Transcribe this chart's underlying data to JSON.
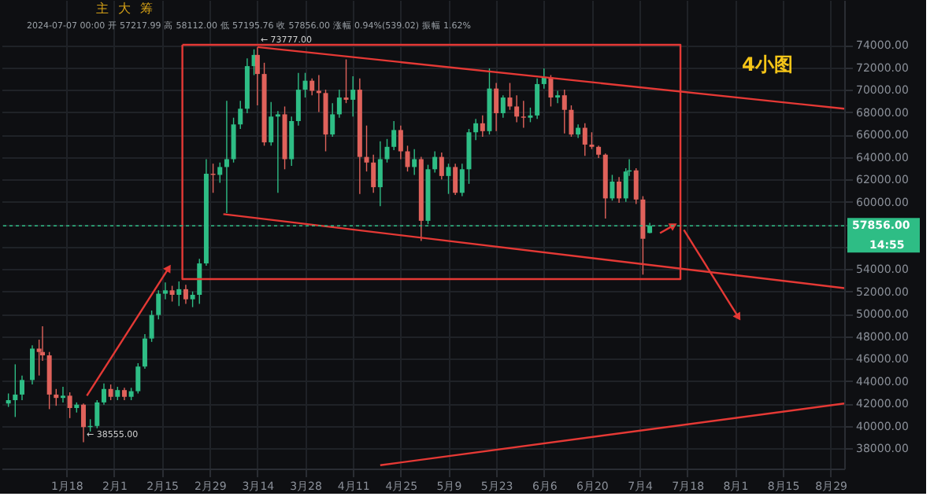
{
  "chart_data": {
    "type": "candlestick",
    "x": [
      "2024-01-01",
      "2024-01-03",
      "2024-01-05",
      "2024-01-08",
      "2024-01-10",
      "2024-01-11",
      "2024-01-13",
      "2024-01-15",
      "2024-01-17",
      "2024-01-19",
      "2024-01-21",
      "2024-01-23",
      "2024-01-25",
      "2024-01-27",
      "2024-01-29",
      "2024-01-31",
      "2024-02-02",
      "2024-02-04",
      "2024-02-06",
      "2024-02-08",
      "2024-02-10",
      "2024-02-12",
      "2024-02-14",
      "2024-02-16",
      "2024-02-18",
      "2024-02-20",
      "2024-02-22",
      "2024-02-24",
      "2024-02-26",
      "2024-02-28",
      "2024-03-01",
      "2024-03-03",
      "2024-03-05",
      "2024-03-07",
      "2024-03-09",
      "2024-03-11",
      "2024-03-13",
      "2024-03-14",
      "2024-03-16",
      "2024-03-18",
      "2024-03-20",
      "2024-03-22",
      "2024-03-24",
      "2024-03-26",
      "2024-03-28",
      "2024-03-30",
      "2024-04-01",
      "2024-04-03",
      "2024-04-05",
      "2024-04-07",
      "2024-04-09",
      "2024-04-11",
      "2024-04-13",
      "2024-04-15",
      "2024-04-17",
      "2024-04-19",
      "2024-04-21",
      "2024-04-23",
      "2024-04-25",
      "2024-04-27",
      "2024-04-29",
      "2024-05-01",
      "2024-05-03",
      "2024-05-05",
      "2024-05-07",
      "2024-05-09",
      "2024-05-11",
      "2024-05-13",
      "2024-05-15",
      "2024-05-17",
      "2024-05-19",
      "2024-05-21",
      "2024-05-23",
      "2024-05-25",
      "2024-05-27",
      "2024-05-29",
      "2024-05-31",
      "2024-06-02",
      "2024-06-04",
      "2024-06-06",
      "2024-06-08",
      "2024-06-10",
      "2024-06-12",
      "2024-06-14",
      "2024-06-16",
      "2024-06-18",
      "2024-06-20",
      "2024-06-22",
      "2024-06-24",
      "2024-06-26",
      "2024-06-28",
      "2024-06-30",
      "2024-07-01",
      "2024-07-03",
      "2024-07-05",
      "2024-07-07"
    ],
    "ohlc": [
      [
        42000,
        42900,
        41700,
        42300
      ],
      [
        42300,
        45500,
        40800,
        42800
      ],
      [
        42800,
        44500,
        42300,
        44100
      ],
      [
        44100,
        47200,
        43700,
        46900
      ],
      [
        46900,
        47700,
        44500,
        46600
      ],
      [
        46600,
        48900,
        45800,
        46300
      ],
      [
        46300,
        46600,
        41500,
        42800
      ],
      [
        42800,
        43300,
        41800,
        42500
      ],
      [
        42500,
        43500,
        42100,
        42700
      ],
      [
        42700,
        43000,
        40700,
        41600
      ],
      [
        41600,
        42100,
        41200,
        41900
      ],
      [
        41900,
        42000,
        38555,
        39900
      ],
      [
        39900,
        40600,
        39500,
        40000
      ],
      [
        40000,
        42300,
        39800,
        42100
      ],
      [
        42100,
        43800,
        41900,
        43300
      ],
      [
        43300,
        43700,
        42300,
        42600
      ],
      [
        42600,
        43500,
        42300,
        43200
      ],
      [
        43200,
        43400,
        42300,
        42600
      ],
      [
        42600,
        43400,
        42300,
        43100
      ],
      [
        43100,
        45600,
        42900,
        45300
      ],
      [
        45300,
        48200,
        45100,
        47800
      ],
      [
        47800,
        50300,
        47500,
        49900
      ],
      [
        49900,
        52100,
        49500,
        51800
      ],
      [
        51800,
        52800,
        51300,
        52100
      ],
      [
        52100,
        52500,
        51100,
        51700
      ],
      [
        51700,
        52900,
        50700,
        52200
      ],
      [
        52200,
        52600,
        50900,
        51300
      ],
      [
        51300,
        52000,
        50600,
        51700
      ],
      [
        51700,
        54900,
        50900,
        54500
      ],
      [
        54500,
        63800,
        54300,
        62500
      ],
      [
        62500,
        63400,
        60800,
        62400
      ],
      [
        62400,
        63500,
        61700,
        63100
      ],
      [
        63100,
        69000,
        59000,
        63800
      ],
      [
        63800,
        67500,
        63500,
        66900
      ],
      [
        66900,
        69000,
        66500,
        68300
      ],
      [
        68300,
        72800,
        67900,
        72100
      ],
      [
        72100,
        73600,
        71300,
        73100
      ],
      [
        73100,
        73777,
        68600,
        71400
      ],
      [
        71400,
        72400,
        65000,
        65300
      ],
      [
        65300,
        68900,
        65000,
        67600
      ],
      [
        67600,
        68100,
        60800,
        67800
      ],
      [
        67800,
        68500,
        62900,
        63800
      ],
      [
        63800,
        67600,
        63200,
        67200
      ],
      [
        67200,
        71500,
        66800,
        70000
      ],
      [
        70000,
        71500,
        69300,
        70800
      ],
      [
        70800,
        71000,
        69500,
        69900
      ],
      [
        69900,
        71300,
        68000,
        69700
      ],
      [
        69700,
        70000,
        64500,
        66000
      ],
      [
        66000,
        68800,
        65800,
        67800
      ],
      [
        67800,
        70000,
        67500,
        69300
      ],
      [
        69300,
        72700,
        68800,
        69100
      ],
      [
        69100,
        71200,
        67600,
        70000
      ],
      [
        70000,
        71000,
        60700,
        64000
      ],
      [
        64000,
        66800,
        62700,
        63500
      ],
      [
        63500,
        64200,
        60800,
        61300
      ],
      [
        61300,
        65400,
        59600,
        63800
      ],
      [
        63800,
        65600,
        63500,
        64900
      ],
      [
        64900,
        67200,
        64600,
        66400
      ],
      [
        66400,
        66800,
        63800,
        64500
      ],
      [
        64500,
        65000,
        62700,
        63100
      ],
      [
        63100,
        64700,
        62400,
        63800
      ],
      [
        63800,
        64000,
        56500,
        58300
      ],
      [
        58300,
        63300,
        58000,
        62900
      ],
      [
        62900,
        64500,
        62600,
        64000
      ],
      [
        64000,
        64400,
        62000,
        62300
      ],
      [
        62300,
        63400,
        60700,
        63100
      ],
      [
        63100,
        63400,
        60600,
        60800
      ],
      [
        60800,
        63400,
        60500,
        62900
      ],
      [
        62900,
        66500,
        61600,
        66200
      ],
      [
        66200,
        67400,
        65500,
        67000
      ],
      [
        67000,
        67700,
        65800,
        66300
      ],
      [
        66300,
        71900,
        66000,
        70100
      ],
      [
        70100,
        70600,
        66300,
        67900
      ],
      [
        67900,
        69500,
        67500,
        69300
      ],
      [
        69300,
        70600,
        68200,
        68500
      ],
      [
        68500,
        69500,
        67100,
        67600
      ],
      [
        67600,
        69000,
        66600,
        67500
      ],
      [
        67500,
        68400,
        67100,
        67700
      ],
      [
        67700,
        71000,
        67400,
        70500
      ],
      [
        70500,
        71900,
        70100,
        71100
      ],
      [
        71100,
        71300,
        68500,
        69300
      ],
      [
        69300,
        69900,
        68800,
        69500
      ],
      [
        69500,
        70000,
        66100,
        68200
      ],
      [
        68200,
        68600,
        65800,
        66000
      ],
      [
        66000,
        66900,
        65700,
        66600
      ],
      [
        66600,
        67000,
        64100,
        65100
      ],
      [
        65100,
        66200,
        64700,
        64900
      ],
      [
        64900,
        65000,
        63900,
        64200
      ],
      [
        64200,
        64300,
        58500,
        60300
      ],
      [
        60300,
        62400,
        60100,
        61800
      ],
      [
        61800,
        62200,
        59900,
        60300
      ],
      [
        60300,
        63000,
        60000,
        62700
      ],
      [
        62700,
        63800,
        62300,
        62800
      ],
      [
        62800,
        63000,
        59800,
        60200
      ],
      [
        60200,
        60500,
        53500,
        56700
      ],
      [
        57217.99,
        58112.0,
        57195.76,
        57856.0
      ]
    ],
    "colors": [
      "#2ebd85",
      "#2ebd85",
      "#2ebd85",
      "#2ebd85",
      "#e0625b",
      "#e0625b",
      "#e0625b",
      "#e0625b",
      "#2ebd85",
      "#e0625b",
      "#2ebd85",
      "#e0625b",
      "#2ebd85",
      "#2ebd85",
      "#2ebd85",
      "#e0625b",
      "#2ebd85",
      "#e0625b",
      "#2ebd85",
      "#2ebd85",
      "#2ebd85",
      "#2ebd85",
      "#2ebd85",
      "#2ebd85",
      "#e0625b",
      "#2ebd85",
      "#e0625b",
      "#2ebd85",
      "#2ebd85",
      "#2ebd85",
      "#e0625b",
      "#2ebd85",
      "#2ebd85",
      "#2ebd85",
      "#2ebd85",
      "#2ebd85",
      "#2ebd85",
      "#e0625b",
      "#e0625b",
      "#2ebd85",
      "#2ebd85",
      "#e0625b",
      "#2ebd85",
      "#2ebd85",
      "#2ebd85",
      "#e0625b",
      "#e0625b",
      "#e0625b",
      "#2ebd85",
      "#2ebd85",
      "#e0625b",
      "#2ebd85",
      "#e0625b",
      "#e0625b",
      "#e0625b",
      "#2ebd85",
      "#2ebd85",
      "#2ebd85",
      "#e0625b",
      "#e0625b",
      "#2ebd85",
      "#e0625b",
      "#2ebd85",
      "#2ebd85",
      "#e0625b",
      "#2ebd85",
      "#e0625b",
      "#2ebd85",
      "#2ebd85",
      "#2ebd85",
      "#e0625b",
      "#2ebd85",
      "#e0625b",
      "#2ebd85",
      "#e0625b",
      "#e0625b",
      "#e0625b",
      "#2ebd85",
      "#2ebd85",
      "#2ebd85",
      "#e0625b",
      "#2ebd85",
      "#e0625b",
      "#e0625b",
      "#2ebd85",
      "#e0625b",
      "#e0625b",
      "#e0625b",
      "#e0625b",
      "#2ebd85",
      "#e0625b",
      "#2ebd85",
      "#2ebd85",
      "#e0625b",
      "#e0625b",
      "#2ebd85"
    ],
    "series": [
      {
        "type": "line",
        "color": "#e53935",
        "x": [
          "2024-03-14",
          "2024-09-02"
        ],
        "values": [
          73800,
          68300
        ]
      },
      {
        "type": "line",
        "color": "#e53935",
        "x": [
          "2024-03-04",
          "2024-09-02"
        ],
        "values": [
          58900,
          52300
        ]
      },
      {
        "type": "line",
        "color": "#e53935",
        "x": [
          "2024-04-19",
          "2024-09-02"
        ],
        "values": [
          36500,
          42000
        ]
      }
    ],
    "ref_lines": [
      {
        "axis": "y",
        "value": 57856,
        "label": "57856.00",
        "color": "#2ebd85",
        "line_style": "dotted"
      }
    ],
    "annotations": [
      "2024-07-07 00:00 开 57217.99 高 58112.00 低 57195.76 收 57856.00 涨幅 0.94%(539.02) 振幅 1.62%",
      "4小图",
      "14:55",
      "主",
      "大",
      "筹",
      {
        "text": "← 73777.00",
        "x": "2024-03-14",
        "y": 73777
      },
      {
        "text": "← 38555.00",
        "x": "2024-01-23",
        "y": 38555
      }
    ],
    "xlim": [
      "2023-12-30",
      "2024-09-02"
    ],
    "ylim": [
      36200,
      78000
    ],
    "xticks": [
      {
        "value": "2024-01-18",
        "label": "1月18"
      },
      {
        "value": "2024-02-01",
        "label": "2月1"
      },
      {
        "value": "2024-02-15",
        "label": "2月15"
      },
      {
        "value": "2024-02-29",
        "label": "2月29"
      },
      {
        "value": "2024-03-14",
        "label": "3月14"
      },
      {
        "value": "2024-03-28",
        "label": "3月28"
      },
      {
        "value": "2024-04-11",
        "label": "4月11"
      },
      {
        "value": "2024-04-25",
        "label": "4月25"
      },
      {
        "value": "2024-05-09",
        "label": "5月9"
      },
      {
        "value": "2024-05-23",
        "label": "5月23"
      },
      {
        "value": "2024-06-06",
        "label": "6月6"
      },
      {
        "value": "2024-06-20",
        "label": "6月20"
      },
      {
        "value": "2024-07-04",
        "label": "7月4"
      },
      {
        "value": "2024-07-18",
        "label": "7月18"
      },
      {
        "value": "2024-08-01",
        "label": "8月1"
      },
      {
        "value": "2024-08-15",
        "label": "8月15"
      },
      {
        "value": "2024-08-29",
        "label": "8月29"
      }
    ],
    "yticks": [
      {
        "value": 38000,
        "label": "38000.00"
      },
      {
        "value": 40000,
        "label": "40000.00"
      },
      {
        "value": 42000,
        "label": "42000.00"
      },
      {
        "value": 44000,
        "label": "44000.00"
      },
      {
        "value": 46000,
        "label": "46000.00"
      },
      {
        "value": 48000,
        "label": "48000.00"
      },
      {
        "value": 50000,
        "label": "50000.00"
      },
      {
        "value": 52000,
        "label": "52000.00"
      },
      {
        "value": 54000,
        "label": "54000.00"
      },
      {
        "value": 56000,
        "label": null
      },
      {
        "value": 58000,
        "label": null
      },
      {
        "value": 60000,
        "label": "60000.00"
      },
      {
        "value": 62000,
        "label": "62000.00"
      },
      {
        "value": 64000,
        "label": "64000.00"
      },
      {
        "value": 66000,
        "label": "66000.00"
      },
      {
        "value": 68000,
        "label": "68000.00"
      },
      {
        "value": 70000,
        "label": "70000.00"
      },
      {
        "value": 72000,
        "label": "72000.00"
      },
      {
        "value": 74000,
        "label": "74000.00"
      }
    ],
    "grid": true
  }
}
